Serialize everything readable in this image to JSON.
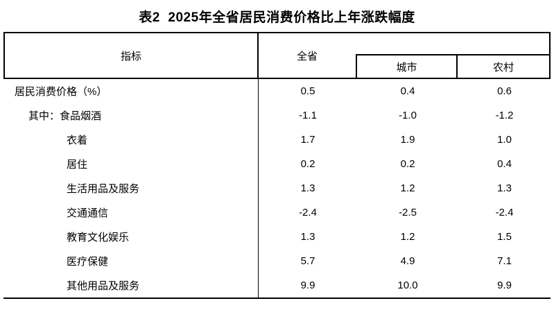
{
  "title": "表2  2025年全省居民消费价格比上年涨跌幅度",
  "table": {
    "header": {
      "indicator": "指标",
      "province": "全省",
      "city": "城市",
      "rural": "农村"
    },
    "rows": [
      {
        "label": "居民消费价格（%）",
        "province": "0.5",
        "city": "0.4",
        "rural": "0.6"
      },
      {
        "label": "其中：食品烟酒",
        "province": "-1.1",
        "city": "-1.0",
        "rural": "-1.2"
      },
      {
        "label": "衣着",
        "province": "1.7",
        "city": "1.9",
        "rural": "1.0"
      },
      {
        "label": "居住",
        "province": "0.2",
        "city": "0.2",
        "rural": "0.4"
      },
      {
        "label": "生活用品及服务",
        "province": "1.3",
        "city": "1.2",
        "rural": "1.3"
      },
      {
        "label": "交通通信",
        "province": "-2.4",
        "city": "-2.5",
        "rural": "-2.4"
      },
      {
        "label": "教育文化娱乐",
        "province": "1.3",
        "city": "1.2",
        "rural": "1.5"
      },
      {
        "label": "医疗保健",
        "province": "5.7",
        "city": "4.9",
        "rural": "7.1"
      },
      {
        "label": "其他用品及服务",
        "province": "9.9",
        "city": "10.0",
        "rural": "9.9"
      }
    ]
  },
  "colors": {
    "text": "#000000",
    "border": "#000000",
    "background": "#ffffff"
  }
}
